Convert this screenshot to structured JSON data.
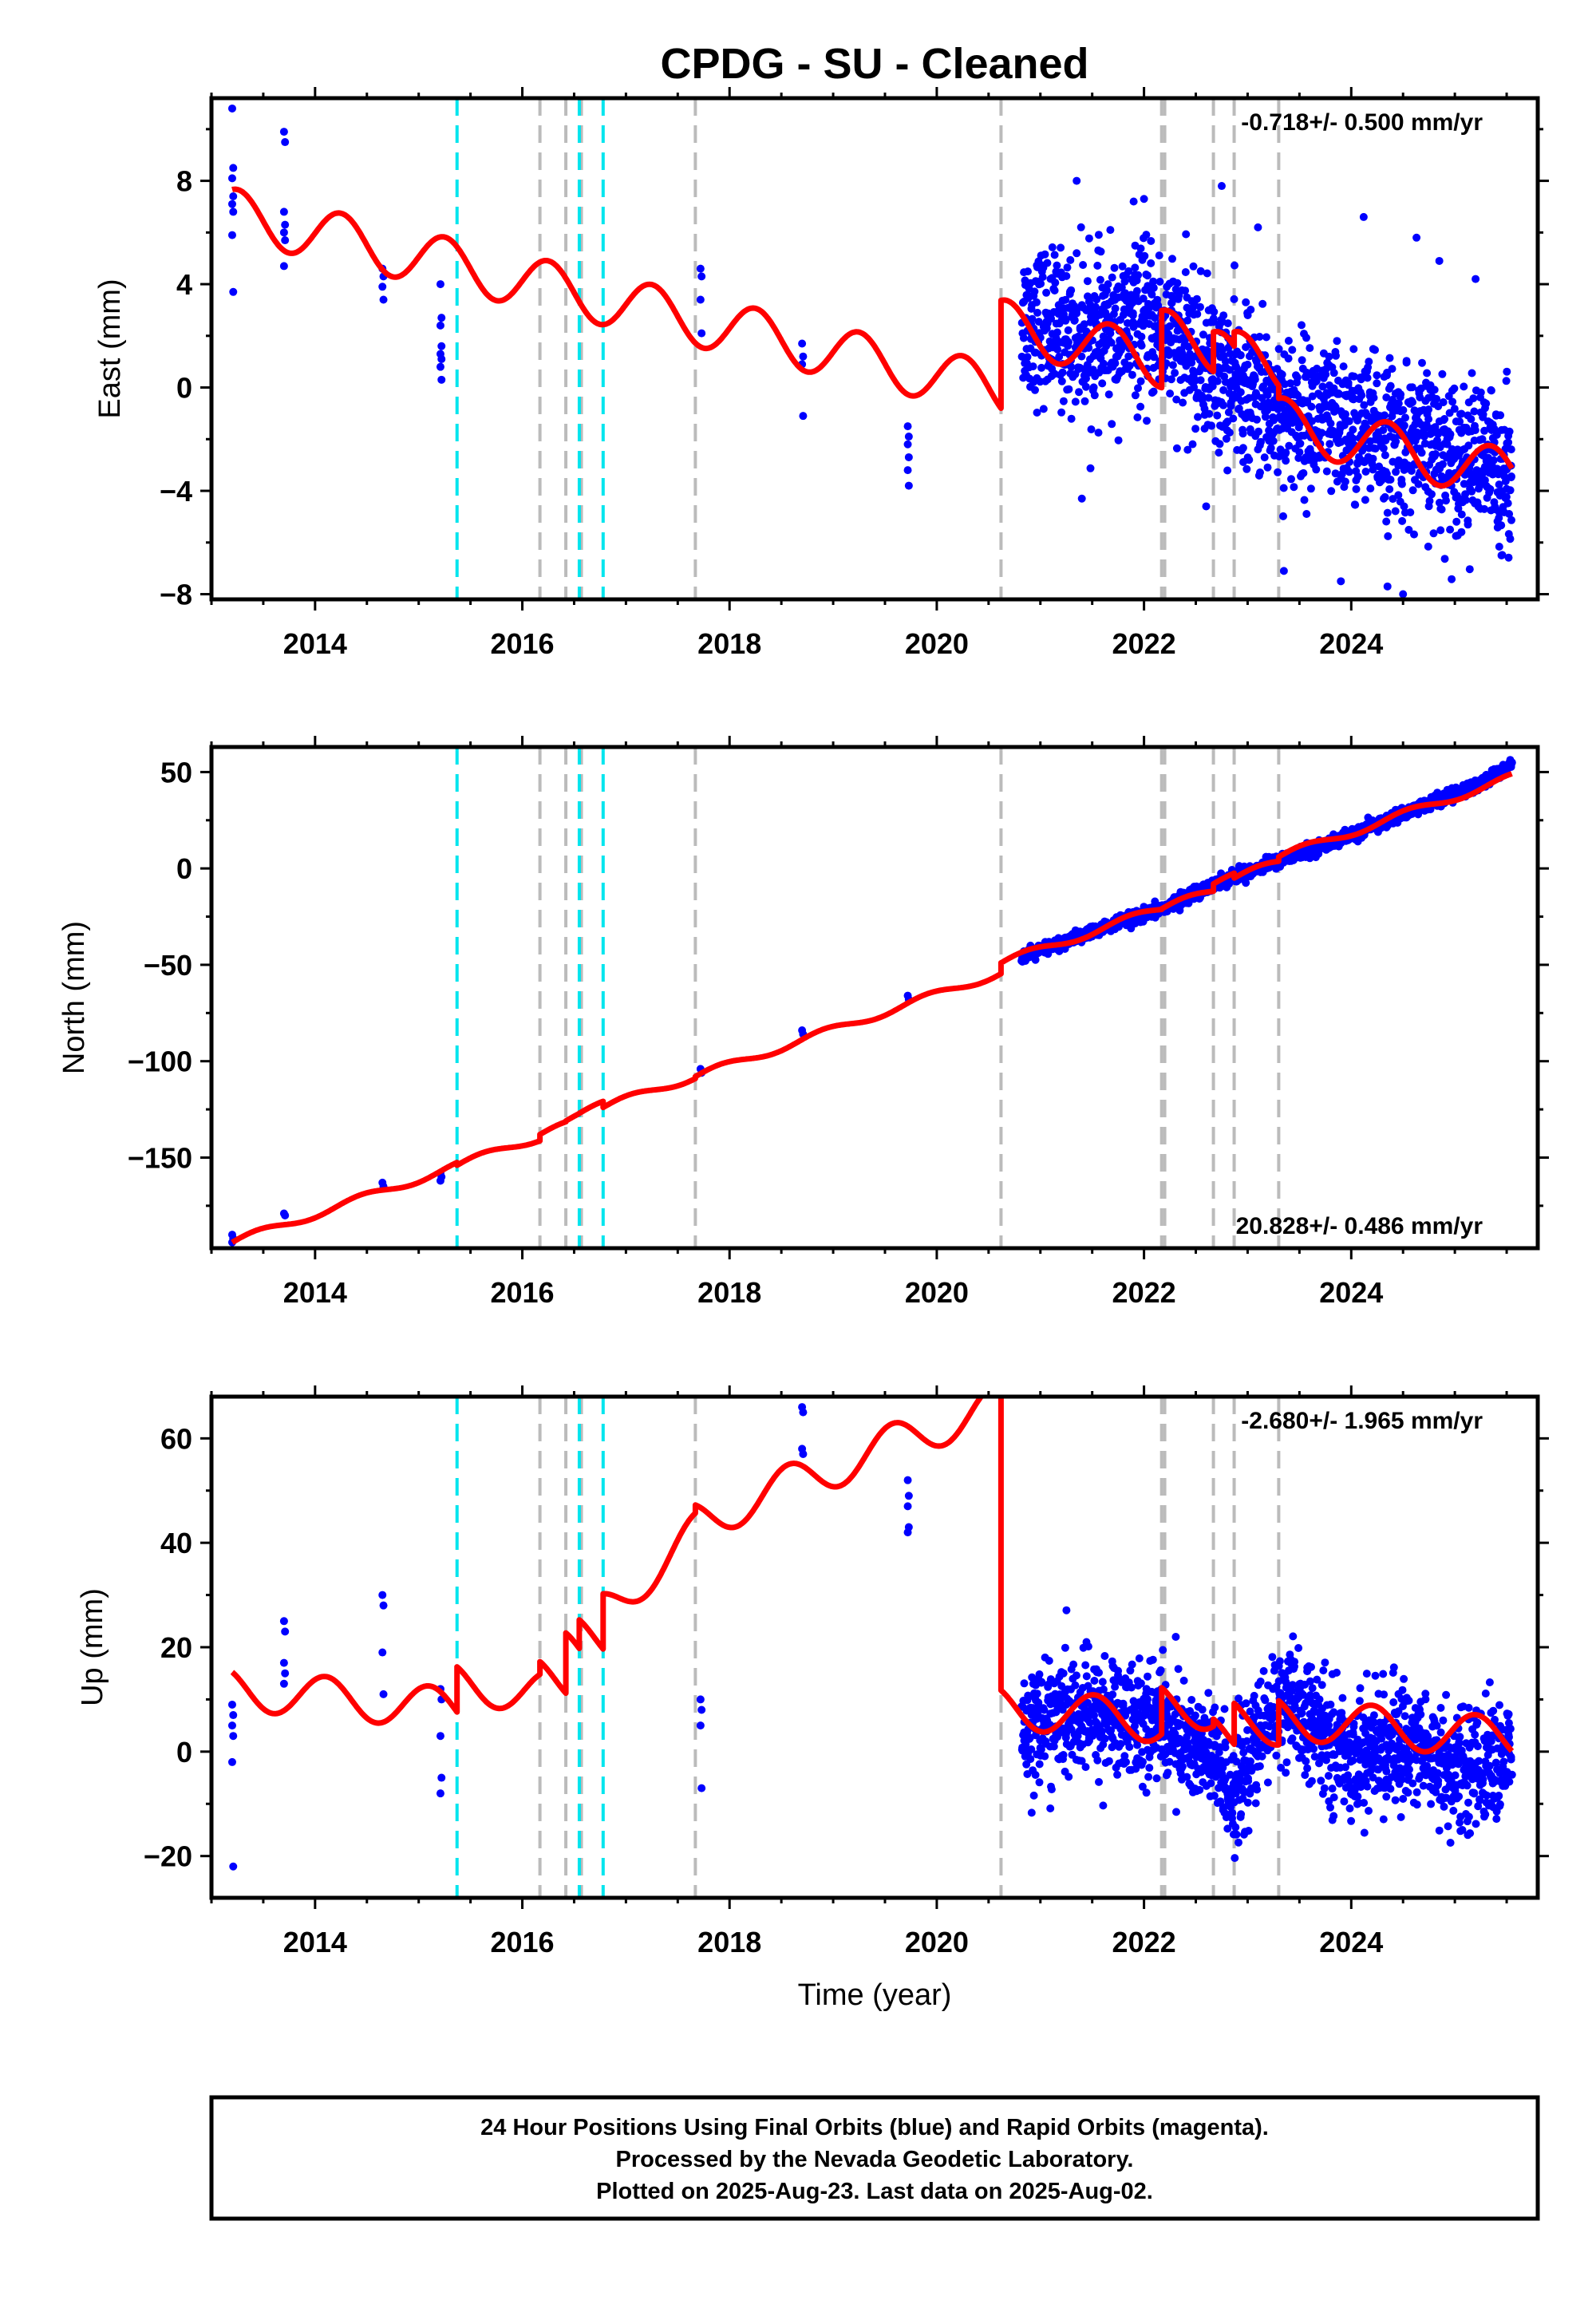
{
  "chart_data": {
    "type": "scatter",
    "title": "CPDG  - SU - Cleaned",
    "x_axis_label": "Time (year)",
    "x_range": [
      2013.0,
      2025.8
    ],
    "x_ticks": [
      2014,
      2016,
      2018,
      2020,
      2022,
      2024
    ],
    "x_tick_labels": [
      "2014",
      "2016",
      "2018",
      "2020",
      "2022",
      "2024"
    ],
    "colors": {
      "data": "#0000ff",
      "model": "#ff0000",
      "equipment_change": "#bbbbbb",
      "earthquake": "#00e5ee"
    },
    "offset_lines": {
      "gray": [
        2016.17,
        2016.42,
        2016.57,
        2017.67,
        2020.62,
        2022.17,
        2022.2,
        2022.67,
        2022.87,
        2023.3
      ],
      "cyan": [
        2015.37,
        2016.55,
        2016.78
      ]
    },
    "panels": [
      {
        "name": "east",
        "ylabel": "East (mm)",
        "ylim": [
          -8.2,
          11.2
        ],
        "y_ticks": [
          -8,
          -4,
          0,
          4,
          8
        ],
        "y_tick_labels": [
          "−8",
          "−4",
          "0",
          "4",
          "8"
        ],
        "rate_label": "-0.718+/- 0.500 mm/yr",
        "rate_position": "top-right",
        "early_points": [
          [
            2013.2,
            10.8
          ],
          [
            2013.21,
            8.5
          ],
          [
            2013.2,
            8.1
          ],
          [
            2013.21,
            7.4
          ],
          [
            2013.2,
            7.1
          ],
          [
            2013.21,
            6.8
          ],
          [
            2013.2,
            5.9
          ],
          [
            2013.21,
            3.7
          ],
          [
            2013.7,
            9.9
          ],
          [
            2013.71,
            9.5
          ],
          [
            2013.7,
            6.8
          ],
          [
            2013.71,
            6.3
          ],
          [
            2013.7,
            6.0
          ],
          [
            2013.71,
            5.7
          ],
          [
            2013.7,
            4.7
          ],
          [
            2014.65,
            4.6
          ],
          [
            2014.66,
            4.3
          ],
          [
            2014.65,
            3.9
          ],
          [
            2014.66,
            3.4
          ],
          [
            2015.21,
            4.0
          ],
          [
            2015.22,
            2.7
          ],
          [
            2015.21,
            2.4
          ],
          [
            2015.22,
            1.6
          ],
          [
            2015.21,
            1.3
          ],
          [
            2015.22,
            1.1
          ],
          [
            2015.21,
            0.8
          ],
          [
            2015.22,
            0.3
          ],
          [
            2017.72,
            4.6
          ],
          [
            2017.73,
            4.3
          ],
          [
            2017.72,
            3.4
          ],
          [
            2017.73,
            2.1
          ],
          [
            2018.7,
            1.7
          ],
          [
            2018.71,
            1.2
          ],
          [
            2018.7,
            0.9
          ],
          [
            2018.71,
            -1.1
          ],
          [
            2019.72,
            -1.5
          ],
          [
            2019.73,
            -1.9
          ],
          [
            2019.72,
            -2.2
          ],
          [
            2019.73,
            -2.7
          ],
          [
            2019.72,
            -3.2
          ],
          [
            2019.73,
            -3.8
          ]
        ],
        "model_segments": [
          {
            "start": 2013.2,
            "end": 2020.62,
            "t0": 2013.2,
            "offset": 6.71,
            "rate": -0.92,
            "amp": 1.0,
            "phase": 0.2
          },
          {
            "start": 2020.62,
            "end": 2022.17,
            "t0": 2020.62,
            "offset": 2.42,
            "rate": -0.92,
            "amp": 1.0,
            "phase": 0.2
          },
          {
            "start": 2022.17,
            "end": 2022.67,
            "t0": 2022.17,
            "offset": 2.03,
            "rate": -0.92,
            "amp": 1.0,
            "phase": 0.2
          },
          {
            "start": 2022.67,
            "end": 2022.87,
            "t0": 2022.67,
            "offset": 1.2,
            "rate": -0.92,
            "amp": 1.0,
            "phase": 0.2
          },
          {
            "start": 2022.87,
            "end": 2023.3,
            "t0": 2022.87,
            "offset": 1.2,
            "rate": -0.92,
            "amp": 1.0,
            "phase": 0.2
          },
          {
            "start": 2023.3,
            "end": 2025.55,
            "t0": 2023.3,
            "offset": -1.37,
            "rate": -0.92,
            "amp": 1.0,
            "phase": 0.2
          }
        ],
        "dense_points": {
          "start": 2020.82,
          "end": 2025.55,
          "count": 1650,
          "noise": 1.45,
          "anchors": [
            [
              2020.82,
              2.7
            ],
            [
              2021.5,
              1.9
            ],
            [
              2022.1,
              2.5
            ],
            [
              2022.67,
              0.6
            ],
            [
              2023.3,
              -0.8
            ],
            [
              2024.2,
              -1.8
            ],
            [
              2025.55,
              -3.2
            ]
          ]
        },
        "outliers": [
          [
            2021.35,
            8.0
          ],
          [
            2021.9,
            7.2
          ],
          [
            2022.0,
            7.3
          ],
          [
            2022.75,
            7.8
          ],
          [
            2023.1,
            6.2
          ],
          [
            2024.12,
            6.6
          ],
          [
            2024.63,
            5.8
          ],
          [
            2024.85,
            4.9
          ],
          [
            2025.2,
            4.2
          ],
          [
            2023.35,
            -7.1
          ],
          [
            2023.9,
            -7.5
          ],
          [
            2024.35,
            -7.7
          ],
          [
            2024.5,
            -8.0
          ],
          [
            2025.45,
            -6.5
          ],
          [
            2021.4,
            -4.3
          ],
          [
            2022.6,
            -4.6
          ]
        ]
      },
      {
        "name": "north",
        "ylabel": "North (mm)",
        "ylim": [
          -197,
          63
        ],
        "y_ticks": [
          -150,
          -100,
          -50,
          0,
          50
        ],
        "y_tick_labels": [
          "−150",
          "−100",
          "−50",
          "0",
          "50"
        ],
        "rate_label": "20.828+/- 0.486 mm/yr",
        "rate_position": "bottom-right",
        "early_points": [
          [
            2013.2,
            -190
          ],
          [
            2013.21,
            -192
          ],
          [
            2013.2,
            -194
          ],
          [
            2013.7,
            -179
          ],
          [
            2013.71,
            -180
          ],
          [
            2014.65,
            -163
          ],
          [
            2014.66,
            -165
          ],
          [
            2015.21,
            -158
          ],
          [
            2015.22,
            -160
          ],
          [
            2015.21,
            -162
          ],
          [
            2017.72,
            -104
          ],
          [
            2017.73,
            -106
          ],
          [
            2018.7,
            -84
          ],
          [
            2018.71,
            -86
          ],
          [
            2019.72,
            -66
          ],
          [
            2019.73,
            -68
          ]
        ],
        "model_segments": [
          {
            "start": 2013.2,
            "end": 2015.37,
            "t0": 2013.2,
            "offset": -194.0,
            "rate": 18.3,
            "amp": 2.0,
            "phase": 0.0
          },
          {
            "start": 2015.37,
            "end": 2016.17,
            "t0": 2015.37,
            "offset": -154.0,
            "rate": 18.3,
            "amp": 2.0,
            "phase": 0.0
          },
          {
            "start": 2016.17,
            "end": 2016.42,
            "t0": 2016.17,
            "offset": -138.0,
            "rate": 18.3,
            "amp": 2.0,
            "phase": 0.0
          },
          {
            "start": 2016.42,
            "end": 2016.55,
            "t0": 2016.42,
            "offset": -131.0,
            "rate": 18.3,
            "amp": 2.0,
            "phase": 0.0
          },
          {
            "start": 2016.55,
            "end": 2016.78,
            "t0": 2016.55,
            "offset": -127.0,
            "rate": 18.3,
            "amp": 2.0,
            "phase": 0.0
          },
          {
            "start": 2016.78,
            "end": 2017.67,
            "t0": 2016.78,
            "offset": -124.0,
            "rate": 18.3,
            "amp": 2.0,
            "phase": 0.0
          },
          {
            "start": 2017.67,
            "end": 2020.62,
            "t0": 2017.67,
            "offset": -108.0,
            "rate": 18.3,
            "amp": 2.0,
            "phase": 0.0
          },
          {
            "start": 2020.62,
            "end": 2022.17,
            "t0": 2020.62,
            "offset": -49.0,
            "rate": 18.3,
            "amp": 2.0,
            "phase": 0.0
          },
          {
            "start": 2022.17,
            "end": 2022.67,
            "t0": 2022.17,
            "offset": -21.0,
            "rate": 18.3,
            "amp": 2.0,
            "phase": 0.0
          },
          {
            "start": 2022.67,
            "end": 2022.87,
            "t0": 2022.67,
            "offset": -8.0,
            "rate": 18.3,
            "amp": 2.0,
            "phase": 0.0
          },
          {
            "start": 2022.87,
            "end": 2023.3,
            "t0": 2022.87,
            "offset": -5.0,
            "rate": 18.3,
            "amp": 2.0,
            "phase": 0.0
          },
          {
            "start": 2023.3,
            "end": 2025.55,
            "t0": 2023.3,
            "offset": 6.0,
            "rate": 18.3,
            "amp": 2.0,
            "phase": 0.0
          }
        ],
        "dense_points": {
          "start": 2020.82,
          "end": 2025.55,
          "count": 1650,
          "noise": 1.6,
          "anchors": [
            [
              2020.82,
              -46
            ],
            [
              2021.5,
              -33
            ],
            [
              2022.17,
              -21
            ],
            [
              2022.67,
              -8
            ],
            [
              2023.3,
              4
            ],
            [
              2024.0,
              17
            ],
            [
              2024.7,
              33
            ],
            [
              2025.2,
              42
            ],
            [
              2025.55,
              54
            ]
          ]
        }
      },
      {
        "name": "up",
        "ylabel": "Up (mm)",
        "ylim": [
          -28,
          68
        ],
        "y_ticks": [
          -20,
          0,
          20,
          40,
          60
        ],
        "y_tick_labels": [
          "−20",
          "0",
          "20",
          "40",
          "60"
        ],
        "rate_label": "-2.680+/- 1.965 mm/yr",
        "rate_position": "top-right",
        "early_points": [
          [
            2013.2,
            9
          ],
          [
            2013.21,
            7
          ],
          [
            2013.2,
            5
          ],
          [
            2013.21,
            3
          ],
          [
            2013.2,
            -2
          ],
          [
            2013.21,
            -22
          ],
          [
            2013.7,
            25
          ],
          [
            2013.71,
            23
          ],
          [
            2013.7,
            17
          ],
          [
            2013.71,
            15
          ],
          [
            2013.7,
            13
          ],
          [
            2014.65,
            30
          ],
          [
            2014.66,
            28
          ],
          [
            2014.65,
            19
          ],
          [
            2014.66,
            11
          ],
          [
            2015.21,
            12
          ],
          [
            2015.22,
            10
          ],
          [
            2015.21,
            3
          ],
          [
            2015.22,
            -5
          ],
          [
            2015.21,
            -8
          ],
          [
            2017.72,
            10
          ],
          [
            2017.73,
            8
          ],
          [
            2017.72,
            5
          ],
          [
            2017.73,
            -7
          ],
          [
            2018.7,
            66
          ],
          [
            2018.71,
            65
          ],
          [
            2018.7,
            58
          ],
          [
            2018.71,
            57
          ],
          [
            2019.72,
            52
          ],
          [
            2019.73,
            49
          ],
          [
            2019.72,
            47
          ],
          [
            2019.73,
            43
          ],
          [
            2019.72,
            42
          ]
        ],
        "model_segments": [
          {
            "start": 2013.2,
            "end": 2015.37,
            "t0": 2013.2,
            "offset": 12.0,
            "rate": -1.8,
            "amp": 4.0,
            "phase": 0.35
          },
          {
            "start": 2015.37,
            "end": 2016.17,
            "t0": 2015.37,
            "offset": 13.0,
            "rate": -1.8,
            "amp": 4.0,
            "phase": 0.35
          },
          {
            "start": 2016.17,
            "end": 2016.42,
            "t0": 2016.17,
            "offset": 14.0,
            "rate": -1.8,
            "amp": 4.0,
            "phase": 0.35
          },
          {
            "start": 2016.42,
            "end": 2016.55,
            "t0": 2016.42,
            "offset": 19.5,
            "rate": -1.8,
            "amp": 4.0,
            "phase": 0.35
          },
          {
            "start": 2016.55,
            "end": 2016.78,
            "t0": 2016.55,
            "offset": 22.0,
            "rate": -1.8,
            "amp": 4.0,
            "phase": 0.35
          },
          {
            "start": 2016.78,
            "end": 2017.67,
            "t0": 2016.78,
            "offset": 27.0,
            "rate": 16.5,
            "amp": 4.0,
            "phase": 0.35
          },
          {
            "start": 2017.67,
            "end": 2020.62,
            "t0": 2017.67,
            "offset": 44.0,
            "rate": 7.8,
            "amp": 4.0,
            "phase": 0.35
          },
          {
            "start": 2020.62,
            "end": 2022.17,
            "t0": 2020.62,
            "offset": 8.5,
            "rate": -1.8,
            "amp": 4.0,
            "phase": 0.35
          },
          {
            "start": 2022.17,
            "end": 2022.67,
            "t0": 2022.17,
            "offset": 9.0,
            "rate": -1.8,
            "amp": 4.0,
            "phase": 0.35
          },
          {
            "start": 2022.67,
            "end": 2022.87,
            "t0": 2022.67,
            "offset": 3.0,
            "rate": -1.8,
            "amp": 4.0,
            "phase": 0.35
          },
          {
            "start": 2022.87,
            "end": 2023.3,
            "t0": 2022.87,
            "offset": 6.0,
            "rate": -1.8,
            "amp": 4.0,
            "phase": 0.35
          },
          {
            "start": 2023.3,
            "end": 2025.55,
            "t0": 2023.3,
            "offset": 6.5,
            "rate": -1.8,
            "amp": 4.0,
            "phase": 0.35
          }
        ],
        "dense_points": {
          "start": 2020.82,
          "end": 2025.55,
          "count": 1650,
          "noise": 5.5,
          "anchors": [
            [
              2020.82,
              5
            ],
            [
              2021.5,
              7
            ],
            [
              2022.17,
              6
            ],
            [
              2022.67,
              -2
            ],
            [
              2022.87,
              -8
            ],
            [
              2023.3,
              10
            ],
            [
              2024.0,
              -1
            ],
            [
              2024.6,
              2
            ],
            [
              2025.0,
              -4
            ],
            [
              2025.55,
              -1
            ]
          ]
        }
      }
    ]
  },
  "caption": {
    "line1": "24 Hour Positions Using Final Orbits (blue) and Rapid Orbits (magenta).",
    "line2": "Processed by the Nevada Geodetic Laboratory.",
    "line3": "Plotted on 2025-Aug-23. Last data on 2025-Aug-02."
  }
}
